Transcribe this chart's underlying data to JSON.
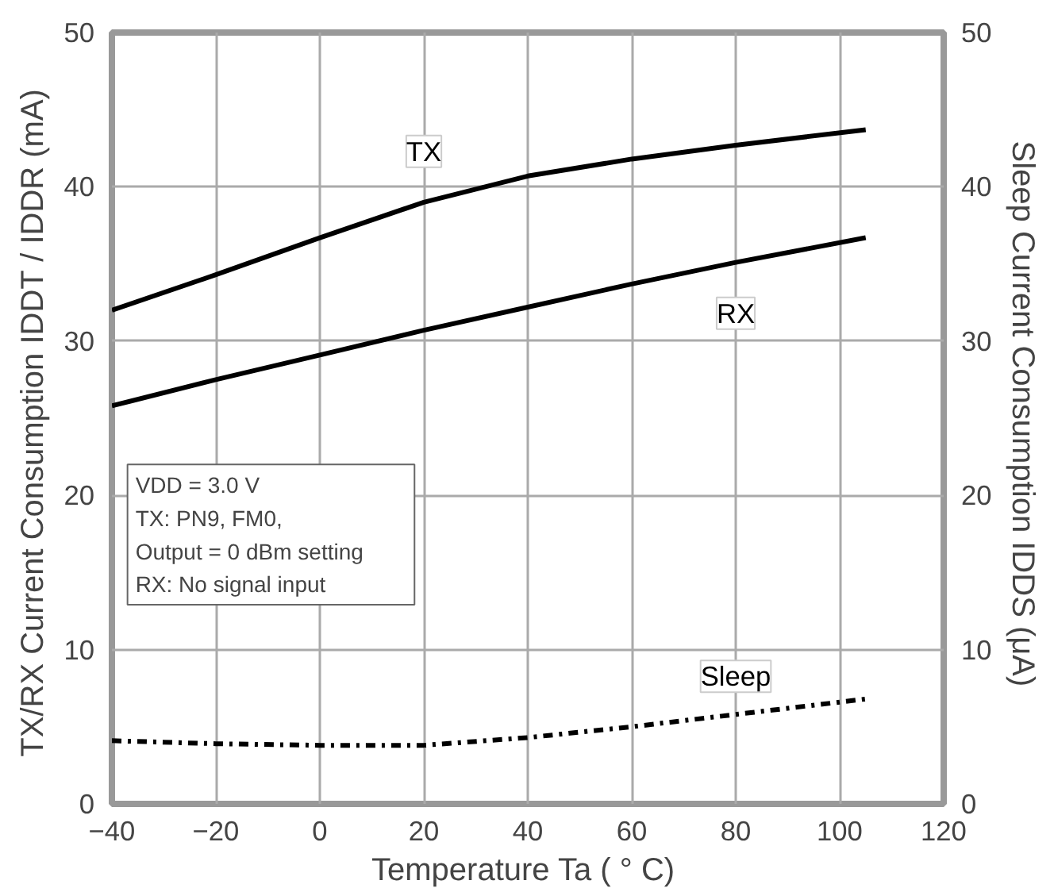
{
  "chart_data": {
    "type": "line",
    "xlabel": "Temperature  Ta ( ° C)",
    "ylabel": "TX/RX Current Consumption  IDDT / IDDR (mA)",
    "y2label": "Sleep Current Consumption  IDDS (μA)",
    "xlim": [
      -40,
      120
    ],
    "xticks": [
      -40,
      -20,
      0,
      20,
      40,
      60,
      80,
      100,
      120
    ],
    "ylim": [
      0,
      50
    ],
    "yticks": [
      0,
      10,
      20,
      30,
      40,
      50
    ],
    "y2lim": [
      0,
      50
    ],
    "y2ticks": [
      0,
      10,
      20,
      30,
      40,
      50
    ],
    "grid": true,
    "line_style": "solid",
    "x": [
      -40,
      -20,
      0,
      20,
      40,
      60,
      80,
      105
    ],
    "series": [
      {
        "name": "TX",
        "color": "#000000",
        "values": [
          32,
          34.3,
          36.7,
          39,
          40.7,
          41.8,
          42.7,
          43.7
        ]
      },
      {
        "name": "RX",
        "color": "#000000",
        "values": [
          25.8,
          27.5,
          29.1,
          30.7,
          32.2,
          33.7,
          35.1,
          36.7
        ]
      },
      {
        "name": "Sleep",
        "color": "#000000",
        "axis": "y2",
        "line_style": "dashdot",
        "values": [
          4.1,
          3.9,
          3.8,
          3.8,
          4.3,
          5.0,
          5.8,
          6.8
        ]
      }
    ],
    "annotations": [
      "VDD = 3.0 V\nTX: PN9, FM0,\n      Output = 0 dBm  setting\nRX: No signal input"
    ]
  }
}
